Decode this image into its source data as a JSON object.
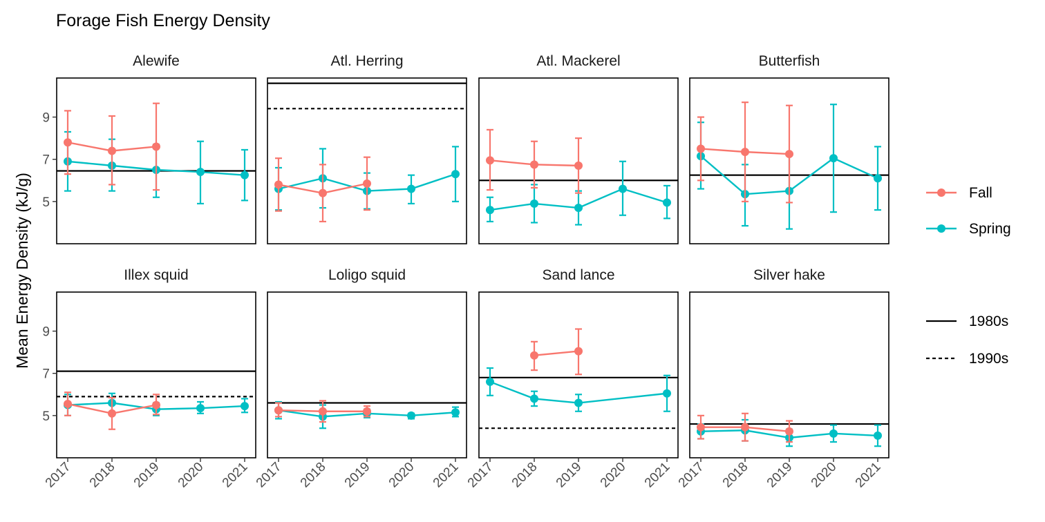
{
  "colors": {
    "fall": "#F8766D",
    "spring": "#00BFC4",
    "reference": "#000000"
  },
  "chart_data": {
    "type": "line",
    "title": "Forage Fish Energy Density",
    "ylabel": "Mean Energy Density (kJ/g)",
    "xlabel": "",
    "x": [
      "2017",
      "2018",
      "2019",
      "2020",
      "2021"
    ],
    "y_ticks": [
      5,
      7,
      9
    ],
    "ylim": [
      3.0,
      10.85
    ],
    "grid": false,
    "legend_placement": "right",
    "legend_season": [
      "Fall",
      "Spring"
    ],
    "legend_decade": [
      "1980s",
      "1990s"
    ],
    "panels": [
      {
        "name": "Alewife",
        "fall": [
          {
            "x": "2017",
            "y": 7.8,
            "lo": 6.3,
            "hi": 9.3
          },
          {
            "x": "2018",
            "y": 7.4,
            "lo": 5.8,
            "hi": 9.05
          },
          {
            "x": "2019",
            "y": 7.6,
            "lo": 5.55,
            "hi": 9.65
          }
        ],
        "spring": [
          {
            "x": "2017",
            "y": 6.9,
            "lo": 5.5,
            "hi": 8.3
          },
          {
            "x": "2018",
            "y": 6.7,
            "lo": 5.5,
            "hi": 7.95
          },
          {
            "x": "2019",
            "y": 6.5,
            "lo": 5.2,
            "hi": 7.7
          },
          {
            "x": "2020",
            "y": 6.4,
            "lo": 4.9,
            "hi": 7.85
          },
          {
            "x": "2021",
            "y": 6.25,
            "lo": 5.05,
            "hi": 7.45
          }
        ],
        "ref_1980s": 6.45,
        "ref_1990s": null
      },
      {
        "name": "Atl. Herring",
        "fall": [
          {
            "x": "2017",
            "y": 5.8,
            "lo": 4.55,
            "hi": 7.05
          },
          {
            "x": "2018",
            "y": 5.4,
            "lo": 4.05,
            "hi": 6.75
          },
          {
            "x": "2019",
            "y": 5.85,
            "lo": 4.6,
            "hi": 7.1
          }
        ],
        "spring": [
          {
            "x": "2017",
            "y": 5.6,
            "lo": 4.6,
            "hi": 6.6
          },
          {
            "x": "2018",
            "y": 6.1,
            "lo": 4.7,
            "hi": 7.5
          },
          {
            "x": "2019",
            "y": 5.5,
            "lo": 4.65,
            "hi": 6.35
          },
          {
            "x": "2020",
            "y": 5.6,
            "lo": 4.9,
            "hi": 6.25
          },
          {
            "x": "2021",
            "y": 6.3,
            "lo": 5.0,
            "hi": 7.6
          }
        ],
        "ref_1980s": 10.6,
        "ref_1990s": 9.4
      },
      {
        "name": "Atl. Mackerel",
        "fall": [
          {
            "x": "2017",
            "y": 6.95,
            "lo": 5.55,
            "hi": 8.4
          },
          {
            "x": "2018",
            "y": 6.75,
            "lo": 5.65,
            "hi": 7.85
          },
          {
            "x": "2019",
            "y": 6.7,
            "lo": 5.4,
            "hi": 8.0
          }
        ],
        "spring": [
          {
            "x": "2017",
            "y": 4.6,
            "lo": 4.05,
            "hi": 5.2
          },
          {
            "x": "2018",
            "y": 4.9,
            "lo": 4.0,
            "hi": 5.8
          },
          {
            "x": "2019",
            "y": 4.7,
            "lo": 3.9,
            "hi": 5.5
          },
          {
            "x": "2020",
            "y": 5.6,
            "lo": 4.35,
            "hi": 6.9
          },
          {
            "x": "2021",
            "y": 4.95,
            "lo": 4.2,
            "hi": 5.75
          }
        ],
        "ref_1980s": 6.0,
        "ref_1990s": null
      },
      {
        "name": "Butterfish",
        "fall": [
          {
            "x": "2017",
            "y": 7.5,
            "lo": 6.0,
            "hi": 9.0
          },
          {
            "x": "2018",
            "y": 7.35,
            "lo": 5.0,
            "hi": 9.7
          },
          {
            "x": "2019",
            "y": 7.25,
            "lo": 4.95,
            "hi": 9.55
          }
        ],
        "spring": [
          {
            "x": "2017",
            "y": 7.15,
            "lo": 5.6,
            "hi": 8.75
          },
          {
            "x": "2018",
            "y": 5.35,
            "lo": 3.85,
            "hi": 6.75
          },
          {
            "x": "2019",
            "y": 5.5,
            "lo": 3.7,
            "hi": 7.3
          },
          {
            "x": "2020",
            "y": 7.05,
            "lo": 4.5,
            "hi": 9.6
          },
          {
            "x": "2021",
            "y": 6.1,
            "lo": 4.6,
            "hi": 7.6
          }
        ],
        "ref_1980s": 6.25,
        "ref_1990s": null
      },
      {
        "name": "Illex squid",
        "fall": [
          {
            "x": "2017",
            "y": 5.55,
            "lo": 5.0,
            "hi": 6.1
          },
          {
            "x": "2018",
            "y": 5.1,
            "lo": 4.35,
            "hi": 5.85
          },
          {
            "x": "2019",
            "y": 5.5,
            "lo": 5.05,
            "hi": 6.0
          }
        ],
        "spring": [
          {
            "x": "2017",
            "y": 5.5,
            "lo": 5.0,
            "hi": 6.0
          },
          {
            "x": "2018",
            "y": 5.6,
            "lo": 5.15,
            "hi": 6.05
          },
          {
            "x": "2019",
            "y": 5.3,
            "lo": 5.0,
            "hi": 5.6
          },
          {
            "x": "2020",
            "y": 5.35,
            "lo": 5.1,
            "hi": 5.65
          },
          {
            "x": "2021",
            "y": 5.45,
            "lo": 5.15,
            "hi": 5.8
          }
        ],
        "ref_1980s": 7.1,
        "ref_1990s": 5.9
      },
      {
        "name": "Loligo squid",
        "fall": [
          {
            "x": "2017",
            "y": 5.25,
            "lo": 4.95,
            "hi": 5.6
          },
          {
            "x": "2018",
            "y": 5.2,
            "lo": 4.7,
            "hi": 5.7
          },
          {
            "x": "2019",
            "y": 5.2,
            "lo": 4.95,
            "hi": 5.45
          }
        ],
        "spring": [
          {
            "x": "2017",
            "y": 5.25,
            "lo": 4.85,
            "hi": 5.65
          },
          {
            "x": "2018",
            "y": 4.95,
            "lo": 4.4,
            "hi": 5.5
          },
          {
            "x": "2019",
            "y": 5.1,
            "lo": 4.9,
            "hi": 5.3
          },
          {
            "x": "2020",
            "y": 5.0,
            "lo": 4.85,
            "hi": 5.1
          },
          {
            "x": "2021",
            "y": 5.15,
            "lo": 4.95,
            "hi": 5.4
          }
        ],
        "ref_1980s": 5.6,
        "ref_1990s": null
      },
      {
        "name": "Sand lance",
        "fall": [
          {
            "x": "2018",
            "y": 7.85,
            "lo": 7.15,
            "hi": 8.5
          },
          {
            "x": "2019",
            "y": 8.05,
            "lo": 6.95,
            "hi": 9.1
          }
        ],
        "spring": [
          {
            "x": "2017",
            "y": 6.6,
            "lo": 5.95,
            "hi": 7.25
          },
          {
            "x": "2018",
            "y": 5.8,
            "lo": 5.45,
            "hi": 6.15
          },
          {
            "x": "2019",
            "y": 5.6,
            "lo": 5.2,
            "hi": 6.0
          },
          {
            "x": "2021",
            "y": 6.05,
            "lo": 5.2,
            "hi": 6.9
          }
        ],
        "ref_1980s": 6.8,
        "ref_1990s": 4.4
      },
      {
        "name": "Silver hake",
        "fall": [
          {
            "x": "2017",
            "y": 4.45,
            "lo": 3.9,
            "hi": 5.0
          },
          {
            "x": "2018",
            "y": 4.45,
            "lo": 3.8,
            "hi": 5.1
          },
          {
            "x": "2019",
            "y": 4.25,
            "lo": 3.75,
            "hi": 4.75
          }
        ],
        "spring": [
          {
            "x": "2017",
            "y": 4.25,
            "lo": 3.9,
            "hi": 4.6
          },
          {
            "x": "2018",
            "y": 4.3,
            "lo": 3.8,
            "hi": 4.8
          },
          {
            "x": "2019",
            "y": 3.95,
            "lo": 3.55,
            "hi": 4.35
          },
          {
            "x": "2020",
            "y": 4.15,
            "lo": 3.75,
            "hi": 4.55
          },
          {
            "x": "2021",
            "y": 4.05,
            "lo": 3.55,
            "hi": 4.55
          }
        ],
        "ref_1980s": 4.6,
        "ref_1990s": null
      }
    ]
  }
}
